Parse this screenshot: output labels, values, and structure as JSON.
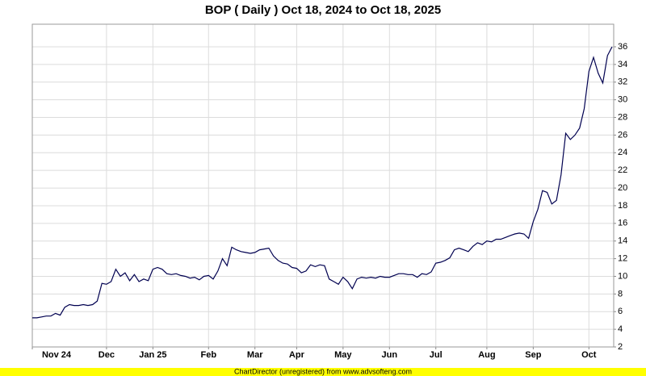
{
  "chart_data": {
    "type": "line",
    "title": "BOP ( Daily ) Oct 18, 2024 to Oct 18, 2025",
    "footer": "ChartDirector (unregistered) from www.advsofteng.com",
    "categories": [
      "Nov 24",
      null,
      null,
      null,
      null,
      null,
      null,
      null,
      null,
      null,
      null,
      null,
      null,
      null,
      null,
      null,
      "Dec",
      null,
      null,
      null,
      null,
      null,
      null,
      null,
      null,
      null,
      "Jan 25",
      null,
      null,
      null,
      null,
      null,
      null,
      null,
      null,
      null,
      null,
      null,
      "Feb",
      null,
      null,
      null,
      null,
      null,
      null,
      null,
      null,
      null,
      "Mar",
      null,
      null,
      null,
      null,
      null,
      null,
      null,
      null,
      "Apr",
      null,
      null,
      null,
      null,
      null,
      null,
      null,
      null,
      null,
      "May",
      null,
      null,
      null,
      null,
      null,
      null,
      null,
      null,
      null,
      "Jun",
      null,
      null,
      null,
      null,
      null,
      null,
      null,
      null,
      null,
      "Jul",
      null,
      null,
      null,
      null,
      null,
      null,
      null,
      null,
      null,
      null,
      "Aug",
      null,
      null,
      null,
      null,
      null,
      null,
      null,
      null,
      null,
      "Sep",
      null,
      null,
      null,
      null,
      null,
      null,
      null,
      null,
      null,
      null,
      null,
      "Oct",
      null,
      null,
      null,
      null,
      null
    ],
    "series": [
      {
        "color": "#000050",
        "values": [
          5.3,
          5.3,
          5.4,
          5.5,
          5.5,
          5.8,
          5.6,
          6.5,
          6.8,
          6.7,
          6.7,
          6.8,
          6.7,
          6.8,
          7.2,
          9.2,
          9.1,
          9.4,
          10.8,
          10.0,
          10.4,
          9.5,
          10.2,
          9.4,
          9.7,
          9.5,
          10.8,
          11.0,
          10.8,
          10.3,
          10.2,
          10.3,
          10.1,
          10.0,
          9.8,
          9.9,
          9.6,
          10.0,
          10.1,
          9.7,
          10.6,
          12.0,
          11.2,
          13.3,
          13.0,
          12.8,
          12.7,
          12.6,
          12.7,
          13.0,
          13.1,
          13.2,
          12.3,
          11.8,
          11.5,
          11.4,
          11.0,
          10.9,
          10.4,
          10.6,
          11.3,
          11.1,
          11.3,
          11.2,
          9.7,
          9.4,
          9.1,
          9.9,
          9.4,
          8.6,
          9.7,
          9.9,
          9.8,
          9.9,
          9.8,
          10.0,
          9.9,
          9.9,
          10.1,
          10.3,
          10.3,
          10.2,
          10.2,
          9.9,
          10.3,
          10.2,
          10.5,
          11.5,
          11.6,
          11.8,
          12.1,
          13.0,
          13.2,
          13.0,
          12.8,
          13.4,
          13.8,
          13.6,
          14.0,
          13.9,
          14.2,
          14.2,
          14.4,
          14.6,
          14.8,
          14.9,
          14.8,
          14.3,
          16.2,
          17.6,
          19.7,
          19.5,
          18.2,
          18.6,
          21.5,
          26.2,
          25.5,
          26.0,
          26.8,
          29.0,
          33.2,
          34.8,
          33.0,
          31.9,
          35.0,
          36.0
        ]
      }
    ],
    "ylim": [
      2,
      38.56
    ],
    "yticks": [
      2,
      4,
      6,
      8,
      10,
      12,
      14,
      16,
      18,
      20,
      22,
      24,
      26,
      28,
      30,
      32,
      34,
      36
    ],
    "grid": true,
    "y_axis_side": "right"
  }
}
